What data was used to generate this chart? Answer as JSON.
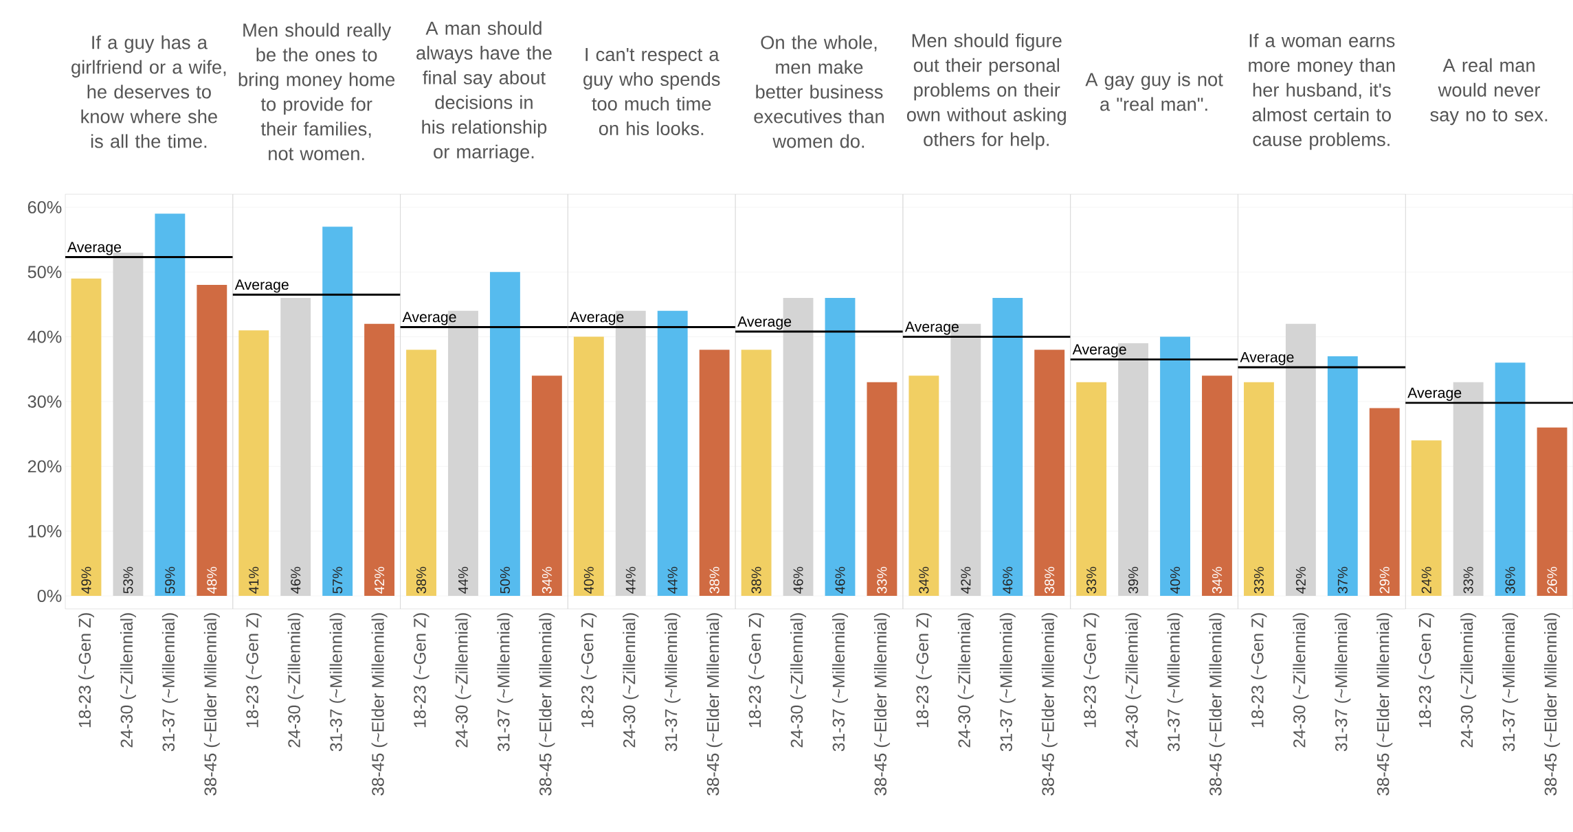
{
  "chart_data": [
    {
      "type": "bar",
      "title": "If a guy has a girlfriend or a wife, he deserves to know where she is all the time.",
      "categories": [
        "18-23 (~Gen Z)",
        "24-30 (~Zillennial)",
        "31-37 (~Millennial)",
        "38-45 (~Elder Millennial)"
      ],
      "values": [
        49,
        53,
        59,
        48
      ],
      "value_labels": [
        "49%",
        "53%",
        "59%",
        "48%"
      ],
      "colors": [
        "#f1cf63",
        "#d4d4d4",
        "#56bbee",
        "#d06b42"
      ],
      "ylim": [
        -2,
        62
      ],
      "yticks": [
        {
          "value": 0,
          "label": "0%"
        },
        {
          "value": 10,
          "label": "10%"
        },
        {
          "value": 20,
          "label": "20%"
        },
        {
          "value": 30,
          "label": "30%"
        },
        {
          "value": 40,
          "label": "40%"
        },
        {
          "value": 50,
          "label": "50%"
        },
        {
          "value": 60,
          "label": "60%"
        }
      ],
      "grid": "y",
      "ref_lines": [
        {
          "axis": "y",
          "value": 52.3,
          "label": "Average"
        }
      ]
    },
    {
      "type": "bar",
      "title": "Men should really be the ones to bring money home to provide for their families, not women.",
      "categories": [
        "18-23 (~Gen Z)",
        "24-30 (~Zillennial)",
        "31-37 (~Millennial)",
        "38-45 (~Elder Millennial)"
      ],
      "values": [
        41,
        46,
        57,
        42
      ],
      "value_labels": [
        "41%",
        "46%",
        "57%",
        "42%"
      ],
      "colors": [
        "#f1cf63",
        "#d4d4d4",
        "#56bbee",
        "#d06b42"
      ],
      "ylim": [
        -2,
        62
      ],
      "yticks": [
        0,
        10,
        20,
        30,
        40,
        50,
        60
      ],
      "grid": "y",
      "tick_labels": "x",
      "ref_lines": [
        {
          "axis": "y",
          "value": 46.5,
          "label": "Average"
        }
      ]
    },
    {
      "type": "bar",
      "title": "A man should always have the final say about decisions in his relationship or marriage.",
      "categories": [
        "18-23 (~Gen Z)",
        "24-30 (~Zillennial)",
        "31-37 (~Millennial)",
        "38-45 (~Elder Millennial)"
      ],
      "values": [
        38,
        44,
        50,
        34
      ],
      "value_labels": [
        "38%",
        "44%",
        "50%",
        "34%"
      ],
      "colors": [
        "#f1cf63",
        "#d4d4d4",
        "#56bbee",
        "#d06b42"
      ],
      "ylim": [
        -2,
        62
      ],
      "yticks": [
        0,
        10,
        20,
        30,
        40,
        50,
        60
      ],
      "grid": "y",
      "tick_labels": "x",
      "ref_lines": [
        {
          "axis": "y",
          "value": 41.5,
          "label": "Average"
        }
      ]
    },
    {
      "type": "bar",
      "title": "I can't respect a guy who spends too much time on his looks.",
      "categories": [
        "18-23 (~Gen Z)",
        "24-30 (~Zillennial)",
        "31-37 (~Millennial)",
        "38-45 (~Elder Millennial)"
      ],
      "values": [
        40,
        44,
        44,
        38
      ],
      "value_labels": [
        "40%",
        "44%",
        "44%",
        "38%"
      ],
      "colors": [
        "#f1cf63",
        "#d4d4d4",
        "#56bbee",
        "#d06b42"
      ],
      "ylim": [
        -2,
        62
      ],
      "yticks": [
        0,
        10,
        20,
        30,
        40,
        50,
        60
      ],
      "grid": "y",
      "tick_labels": "x",
      "ref_lines": [
        {
          "axis": "y",
          "value": 41.5,
          "label": "Average"
        }
      ]
    },
    {
      "type": "bar",
      "title": "On the whole, men make better business executives than women do.",
      "categories": [
        "18-23 (~Gen Z)",
        "24-30 (~Zillennial)",
        "31-37 (~Millennial)",
        "38-45 (~Elder Millennial)"
      ],
      "values": [
        38,
        46,
        46,
        33
      ],
      "value_labels": [
        "38%",
        "46%",
        "46%",
        "33%"
      ],
      "colors": [
        "#f1cf63",
        "#d4d4d4",
        "#56bbee",
        "#d06b42"
      ],
      "ylim": [
        -2,
        62
      ],
      "yticks": [
        0,
        10,
        20,
        30,
        40,
        50,
        60
      ],
      "grid": "y",
      "tick_labels": "x",
      "ref_lines": [
        {
          "axis": "y",
          "value": 40.8,
          "label": "Average"
        }
      ]
    },
    {
      "type": "bar",
      "title": "Men should figure out their personal problems on their own without asking others for help.",
      "categories": [
        "18-23 (~Gen Z)",
        "24-30 (~Zillennial)",
        "31-37 (~Millennial)",
        "38-45 (~Elder Millennial)"
      ],
      "values": [
        34,
        42,
        46,
        38
      ],
      "value_labels": [
        "34%",
        "42%",
        "46%",
        "38%"
      ],
      "colors": [
        "#f1cf63",
        "#d4d4d4",
        "#56bbee",
        "#d06b42"
      ],
      "ylim": [
        -2,
        62
      ],
      "yticks": [
        0,
        10,
        20,
        30,
        40,
        50,
        60
      ],
      "grid": "y",
      "tick_labels": "x",
      "ref_lines": [
        {
          "axis": "y",
          "value": 40,
          "label": "Average"
        }
      ]
    },
    {
      "type": "bar",
      "title": "A gay guy is not a \"real man\".",
      "categories": [
        "18-23 (~Gen Z)",
        "24-30 (~Zillennial)",
        "31-37 (~Millennial)",
        "38-45 (~Elder Millennial)"
      ],
      "values": [
        33,
        39,
        40,
        34
      ],
      "value_labels": [
        "33%",
        "39%",
        "40%",
        "34%"
      ],
      "colors": [
        "#f1cf63",
        "#d4d4d4",
        "#56bbee",
        "#d06b42"
      ],
      "ylim": [
        -2,
        62
      ],
      "yticks": [
        0,
        10,
        20,
        30,
        40,
        50,
        60
      ],
      "grid": "y",
      "tick_labels": "x",
      "ref_lines": [
        {
          "axis": "y",
          "value": 36.5,
          "label": "Average"
        }
      ]
    },
    {
      "type": "bar",
      "title": "If a woman earns more money than her husband, it's almost certain to cause problems.",
      "categories": [
        "18-23 (~Gen Z)",
        "24-30 (~Zillennial)",
        "31-37 (~Millennial)",
        "38-45 (~Elder Millennial)"
      ],
      "values": [
        33,
        42,
        37,
        29
      ],
      "value_labels": [
        "33%",
        "42%",
        "37%",
        "29%"
      ],
      "colors": [
        "#f1cf63",
        "#d4d4d4",
        "#56bbee",
        "#d06b42"
      ],
      "ylim": [
        -2,
        62
      ],
      "yticks": [
        0,
        10,
        20,
        30,
        40,
        50,
        60
      ],
      "grid": "y",
      "tick_labels": "x",
      "ref_lines": [
        {
          "axis": "y",
          "value": 35.3,
          "label": "Average"
        }
      ]
    },
    {
      "type": "bar",
      "title": "A real man would never say no to sex.",
      "categories": [
        "18-23 (~Gen Z)",
        "24-30 (~Zillennial)",
        "31-37 (~Millennial)",
        "38-45 (~Elder Millennial)"
      ],
      "values": [
        24,
        33,
        36,
        26
      ],
      "value_labels": [
        "24%",
        "33%",
        "36%",
        "26%"
      ],
      "colors": [
        "#f1cf63",
        "#d4d4d4",
        "#56bbee",
        "#d06b42"
      ],
      "ylim": [
        -2,
        62
      ],
      "yticks": [
        0,
        10,
        20,
        30,
        40,
        50,
        60
      ],
      "grid": "y",
      "tick_labels": "x",
      "ref_lines": [
        {
          "axis": "y",
          "value": 29.8,
          "label": "Average"
        }
      ]
    }
  ]
}
